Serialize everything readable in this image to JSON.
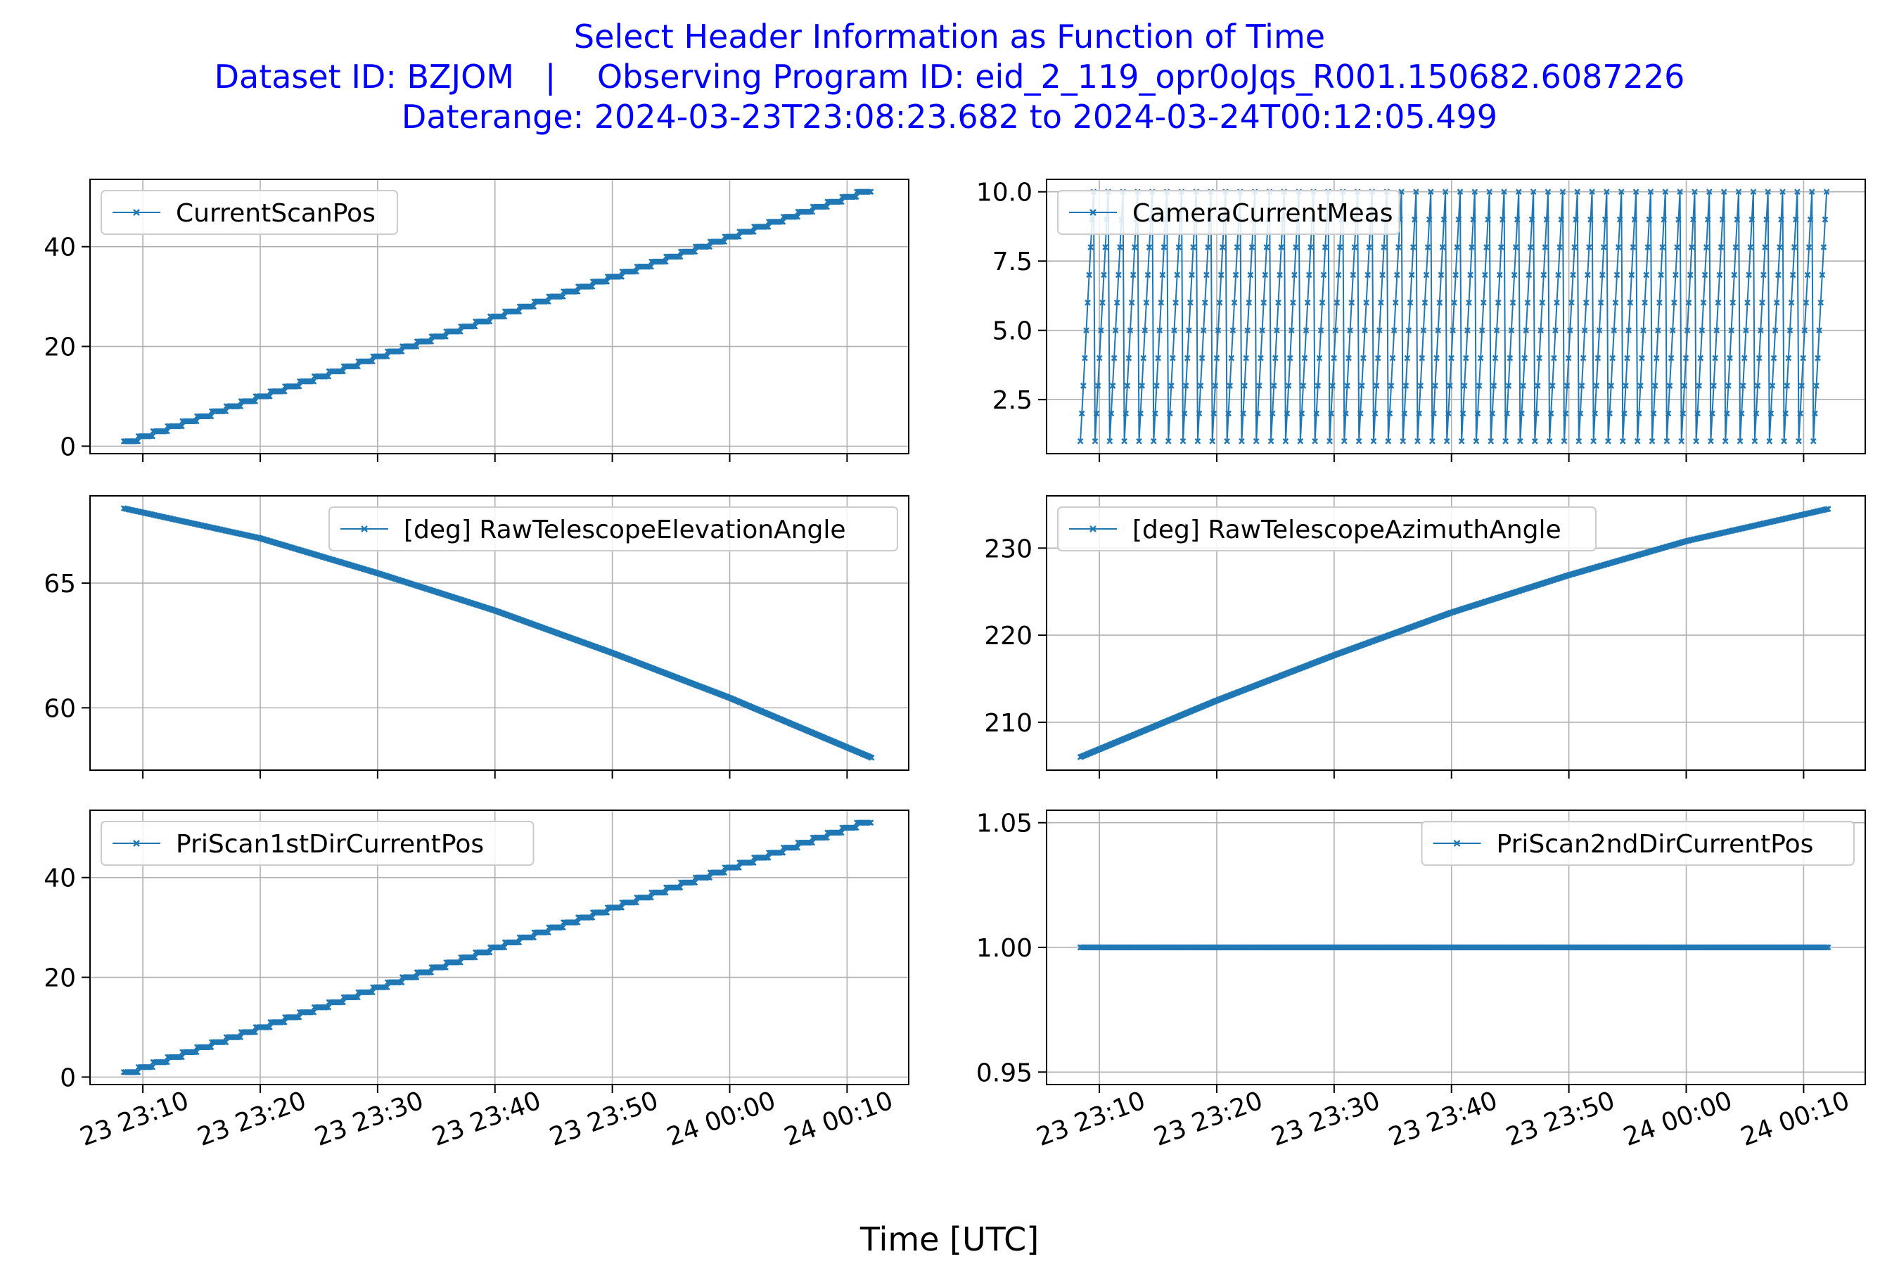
{
  "figure": {
    "title_lines": [
      "Select Header Information as Function of Time",
      "Dataset ID: BZJOM   |    Observing Program ID: eid_2_119_opr0oJqs_R001.150682.6087226",
      "Daterange: 2024-03-23T23:08:23.682 to 2024-03-24T00:12:05.499"
    ],
    "xlabel": "Time [UTC]",
    "colors": {
      "line": "#1f77b4",
      "title": "#0000ff",
      "grid": "#b0b0b0"
    }
  },
  "chart_data": [
    {
      "type": "line",
      "legend": "CurrentScanPos",
      "legend_loc": "upper-left",
      "x_range": [
        "2024-03-23T23:08:23",
        "2024-03-24T00:12:05"
      ],
      "xlim": [
        "2024-03-23T23:05:30",
        "2024-03-24T00:15:15"
      ],
      "xticks": [
        "23 23:10",
        "23 23:20",
        "23 23:30",
        "23 23:40",
        "23 23:50",
        "24 00:00",
        "24 00:10"
      ],
      "ylim": [
        -1.5,
        53.5
      ],
      "yticks": [
        0,
        20,
        40
      ],
      "pattern": "staircase",
      "y_start": 1,
      "y_end": 51,
      "steps": 51,
      "grid": true,
      "marker": "x"
    },
    {
      "type": "line",
      "legend": "CameraCurrentMeas",
      "legend_loc": "upper-left",
      "x_range": [
        "2024-03-23T23:08:23",
        "2024-03-24T00:12:05"
      ],
      "xlim": [
        "2024-03-23T23:05:30",
        "2024-03-24T00:15:15"
      ],
      "xticks": [
        "23 23:10",
        "23 23:20",
        "23 23:30",
        "23 23:40",
        "23 23:50",
        "24 00:00",
        "24 00:10"
      ],
      "ylim": [
        0.55,
        10.45
      ],
      "yticks": [
        2.5,
        5.0,
        7.5,
        10.0
      ],
      "pattern": "sawtooth",
      "y_start": 1,
      "y_end": 10,
      "cycles": 51,
      "grid": true,
      "marker": "x"
    },
    {
      "type": "line",
      "legend": "[deg] RawTelescopeElevationAngle",
      "legend_loc": "upper-right",
      "x_range": [
        "2024-03-23T23:08:23",
        "2024-03-24T00:12:05"
      ],
      "xlim": [
        "2024-03-23T23:05:30",
        "2024-03-24T00:15:15"
      ],
      "xticks": [
        "23 23:10",
        "23 23:20",
        "23 23:30",
        "23 23:40",
        "23 23:50",
        "24 00:00",
        "24 00:10"
      ],
      "ylim": [
        57.5,
        68.5
      ],
      "yticks": [
        60,
        65
      ],
      "pattern": "curve",
      "x": [
        "2024-03-23T23:08:23",
        "2024-03-23T23:20:00",
        "2024-03-23T23:30:00",
        "2024-03-23T23:40:00",
        "2024-03-23T23:50:00",
        "2024-03-24T00:00:00",
        "2024-03-24T00:12:05"
      ],
      "y": [
        68.0,
        66.8,
        65.4,
        63.9,
        62.2,
        60.4,
        58.0
      ],
      "grid": true,
      "marker": "x"
    },
    {
      "type": "line",
      "legend": "[deg] RawTelescopeAzimuthAngle",
      "legend_loc": "upper-left",
      "x_range": [
        "2024-03-23T23:08:23",
        "2024-03-24T00:12:05"
      ],
      "xlim": [
        "2024-03-23T23:05:30",
        "2024-03-24T00:15:15"
      ],
      "xticks": [
        "23 23:10",
        "23 23:20",
        "23 23:30",
        "23 23:40",
        "23 23:50",
        "24 00:00",
        "24 00:10"
      ],
      "ylim": [
        204.5,
        236.0
      ],
      "yticks": [
        210,
        220,
        230
      ],
      "pattern": "curve",
      "x": [
        "2024-03-23T23:08:23",
        "2024-03-23T23:20:00",
        "2024-03-23T23:30:00",
        "2024-03-23T23:40:00",
        "2024-03-23T23:50:00",
        "2024-03-24T00:00:00",
        "2024-03-24T00:12:05"
      ],
      "y": [
        206.0,
        212.5,
        217.7,
        222.6,
        226.9,
        230.8,
        234.5
      ],
      "grid": true,
      "marker": "x"
    },
    {
      "type": "line",
      "legend": "PriScan1stDirCurrentPos",
      "legend_loc": "upper-left",
      "x_range": [
        "2024-03-23T23:08:23",
        "2024-03-24T00:12:05"
      ],
      "xlim": [
        "2024-03-23T23:05:30",
        "2024-03-24T00:15:15"
      ],
      "xticks": [
        "23 23:10",
        "23 23:20",
        "23 23:30",
        "23 23:40",
        "23 23:50",
        "24 00:00",
        "24 00:10"
      ],
      "ylim": [
        -1.5,
        53.5
      ],
      "yticks": [
        0,
        20,
        40
      ],
      "pattern": "staircase",
      "y_start": 1,
      "y_end": 51,
      "steps": 51,
      "grid": true,
      "marker": "x"
    },
    {
      "type": "line",
      "legend": "PriScan2ndDirCurrentPos",
      "legend_loc": "upper-right",
      "x_range": [
        "2024-03-23T23:08:23",
        "2024-03-24T00:12:05"
      ],
      "xlim": [
        "2024-03-23T23:05:30",
        "2024-03-24T00:15:15"
      ],
      "xticks": [
        "23 23:10",
        "23 23:20",
        "23 23:30",
        "23 23:40",
        "23 23:50",
        "24 00:00",
        "24 00:10"
      ],
      "ylim": [
        0.945,
        1.055
      ],
      "yticks": [
        0.95,
        1.0,
        1.05
      ],
      "ytick_labels": [
        "0.95",
        "1.00",
        "1.05"
      ],
      "pattern": "constant",
      "y_const": 1.0,
      "grid": true,
      "marker": "x"
    }
  ]
}
